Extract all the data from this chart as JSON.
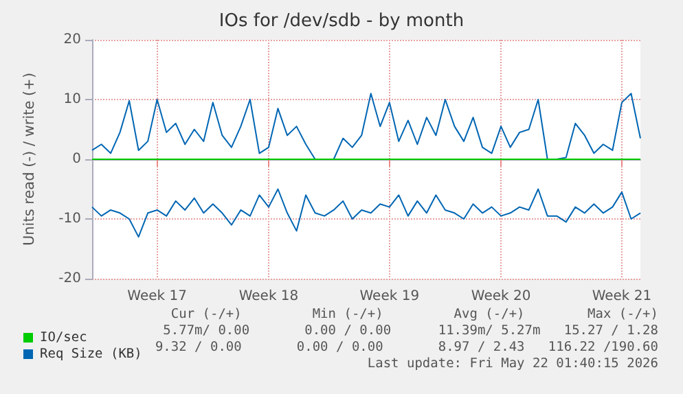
{
  "chart_data": {
    "type": "line",
    "title": "IOs for /dev/sdb - by month",
    "ylabel": "Units read (-) / write (+)",
    "categories": [
      null,
      null,
      null,
      null,
      null,
      null,
      null,
      "Week 17",
      null,
      null,
      null,
      null,
      null,
      null,
      null,
      null,
      null,
      null,
      null,
      "Week 18",
      null,
      null,
      null,
      null,
      null,
      null,
      null,
      null,
      null,
      null,
      null,
      null,
      "Week 19",
      null,
      null,
      null,
      null,
      null,
      null,
      null,
      null,
      null,
      null,
      null,
      "Week 20",
      null,
      null,
      null,
      null,
      null,
      null,
      null,
      null,
      null,
      null,
      null,
      null,
      "Week 21",
      null,
      null
    ],
    "ylim": [
      -20,
      20
    ],
    "yticks": [
      -20,
      -10,
      0,
      10,
      20
    ],
    "grid": true,
    "legend": "bottom",
    "marker": "none",
    "line_style": "solid",
    "series": [
      {
        "name": "Req Size (KB)",
        "color": "#0066b3",
        "values": [
          1.5,
          2.5,
          1,
          4.5,
          9.8,
          1.5,
          3,
          10,
          4.5,
          6,
          2.5,
          5,
          3,
          9.5,
          4,
          2,
          5.5,
          10,
          1,
          2,
          8.5,
          4,
          5.5,
          2.5,
          0,
          0,
          0,
          3.5,
          2,
          4,
          11,
          5.5,
          9.5,
          3,
          6.5,
          2.5,
          7,
          4,
          10,
          5.5,
          3,
          7,
          2,
          1,
          5.5,
          2,
          4.5,
          5,
          10,
          0,
          0,
          0.3,
          6,
          4,
          1,
          2.5,
          1.5,
          9.5,
          11,
          3.5
        ]
      },
      {
        "color": "#0066b3",
        "values": [
          -8,
          -9.5,
          -8.5,
          -9,
          -10,
          -13,
          -9,
          -8.5,
          -9.5,
          -7,
          -8.5,
          -6.5,
          -9,
          -7.5,
          -9,
          -11,
          -8.5,
          -9.5,
          -6,
          -8,
          -5,
          -9,
          -12,
          -6,
          -9,
          -9.5,
          -8.5,
          -7,
          -10,
          -8.5,
          -9,
          -7.5,
          -8,
          -6,
          -9.5,
          -7,
          -9,
          -6,
          -8.5,
          -9,
          -10,
          -7.5,
          -9,
          -8,
          -9.5,
          -9,
          -8,
          -8.5,
          -5,
          -9.5,
          -9.5,
          -10.5,
          -8,
          -9,
          -7.5,
          -9,
          -8,
          -5.5,
          -10,
          -9
        ]
      },
      {
        "name": "IO/sec",
        "color": "#00cc00",
        "values": [
          0,
          0,
          0,
          0,
          0,
          0,
          0,
          0,
          0,
          0,
          0,
          0,
          0,
          0,
          0,
          0,
          0,
          0,
          0,
          0,
          0,
          0,
          0,
          0,
          0,
          0,
          0,
          0,
          0,
          0,
          0,
          0,
          0,
          0,
          0,
          0,
          0,
          0,
          0,
          0,
          0,
          0,
          0,
          0,
          0,
          0,
          0,
          0,
          0,
          0,
          0,
          0,
          0,
          0,
          0,
          0,
          0,
          0,
          0,
          0
        ]
      }
    ],
    "annotations": [
      "Cur (-/+)         Min (-/+)         Avg (-/+)        Max (-/+)",
      "5.77m/ 0.00       0.00 / 0.00      11.39m/ 5.27m   15.27 / 1.28",
      "9.32 / 0.00       0.00 / 0.00       8.97 / 2.43   116.22 /190.60",
      "Last update: Fri May 22 01:40:15 2026"
    ]
  }
}
